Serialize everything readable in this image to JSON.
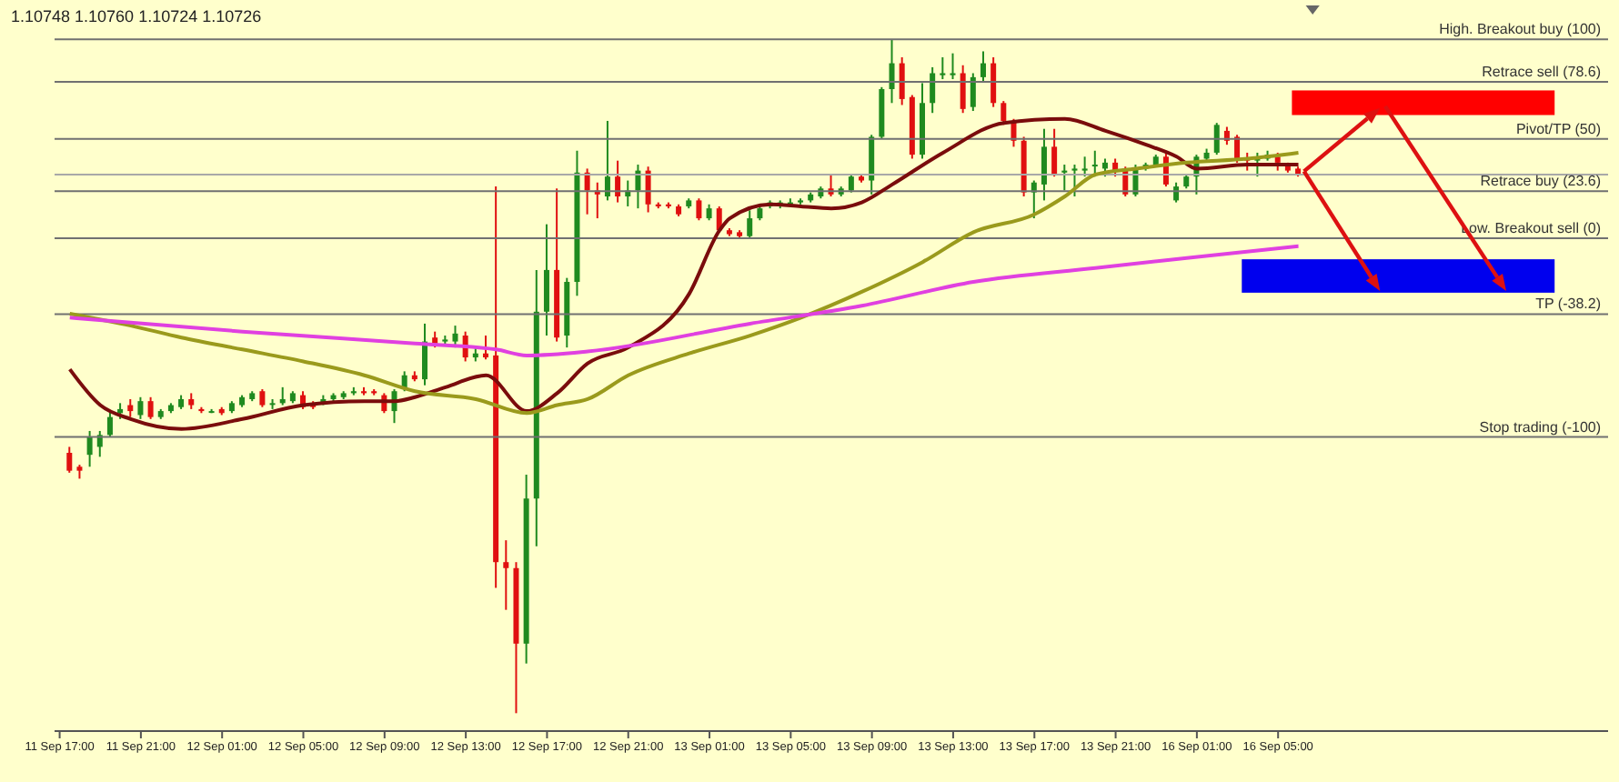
{
  "chart_data": {
    "type": "candlestick",
    "tick_labels": "x",
    "ylim": [
      -248,
      118
    ],
    "colors": [
      null,
      "#e01010",
      "#e01010",
      "#1f8a1f",
      "#1f8a1f",
      "#1f8a1f",
      "#1f8a1f",
      "#e01010",
      "#1f8a1f",
      "#e01010",
      "#1f8a1f",
      "#1f8a1f",
      "#1f8a1f",
      "#e01010",
      "#e01010",
      "#1f8a1f",
      "#e01010",
      "#1f8a1f",
      "#1f8a1f",
      "#1f8a1f",
      "#e01010",
      "#1f8a1f",
      "#1f8a1f",
      "#1f8a1f",
      "#e01010",
      "#e01010",
      "#1f8a1f",
      "#1f8a1f",
      "#1f8a1f",
      "#1f8a1f",
      "#e01010",
      "#e01010",
      "#e01010",
      "#1f8a1f",
      "#1f8a1f",
      "#e01010",
      "#1f8a1f",
      "#e01010",
      "#1f8a1f",
      "#1f8a1f",
      "#e01010",
      "#1f8a1f",
      "#e01010",
      "#e01010",
      "#e01010",
      "#e01010",
      "#1f8a1f",
      "#1f8a1f",
      "#1f8a1f",
      "#e01010",
      "#1f8a1f",
      "#1f8a1f",
      "#e01010",
      "#e01010",
      "#1f8a1f",
      "#e01010",
      "#1f8a1f",
      "#1f8a1f",
      "#e01010",
      "#e01010",
      "#e01010",
      "#e01010",
      "#1f8a1f",
      "#e01010",
      "#1f8a1f",
      "#e01010",
      "#e01010",
      "#e01010",
      "#1f8a1f",
      "#1f8a1f",
      "#1f8a1f",
      "#1f8a1f",
      "#1f8a1f",
      "#1f8a1f",
      "#1f8a1f",
      "#1f8a1f",
      "#e01010",
      "#1f8a1f",
      "#1f8a1f",
      "#e01010",
      "#1f8a1f",
      "#1f8a1f",
      "#1f8a1f",
      "#e01010",
      "#e01010",
      "#1f8a1f",
      "#1f8a1f",
      "#1f8a1f",
      "#1f8a1f",
      "#e01010",
      "#1f8a1f",
      "#1f8a1f",
      "#e01010",
      "#e01010",
      "#e01010",
      "#e01010",
      "#1f8a1f",
      "#1f8a1f",
      "#e01010",
      "#1f8a1f",
      "#1f8a1f",
      "#1f8a1f",
      "#1f8a1f",
      "#1f8a1f",
      "#e01010",
      "#e01010",
      "#1f8a1f",
      "#1f8a1f",
      "#1f8a1f",
      "#e01010",
      "#1f8a1f",
      "#1f8a1f",
      "#1f8a1f",
      "#1f8a1f",
      "#1f8a1f",
      "#e01010",
      "#e01010",
      "#e01010",
      "#1f8a1f",
      "#1f8a1f",
      "#e01010",
      "#e01010",
      "#e01010",
      null,
      null,
      null,
      null,
      null,
      null,
      null,
      null,
      null,
      null,
      null,
      null,
      null,
      null,
      null,
      null,
      null,
      null,
      null,
      null,
      null,
      null,
      null,
      null,
      null,
      null,
      null,
      null,
      null,
      null
    ],
    "annotations": [
      "1.10748 1.10760 1.10724 1.10726"
    ],
    "categories": [
      "11 Sep 17:00",
      null,
      null,
      null,
      null,
      null,
      null,
      null,
      "11 Sep 21:00",
      null,
      null,
      null,
      null,
      null,
      null,
      null,
      "12 Sep 01:00",
      null,
      null,
      null,
      null,
      null,
      null,
      null,
      "12 Sep 05:00",
      null,
      null,
      null,
      null,
      null,
      null,
      null,
      "12 Sep 09:00",
      null,
      null,
      null,
      null,
      null,
      null,
      null,
      "12 Sep 13:00",
      null,
      null,
      null,
      null,
      null,
      null,
      null,
      "12 Sep 17:00",
      null,
      null,
      null,
      null,
      null,
      null,
      null,
      "12 Sep 21:00",
      null,
      null,
      null,
      null,
      null,
      null,
      null,
      "13 Sep 01:00",
      null,
      null,
      null,
      null,
      null,
      null,
      null,
      "13 Sep 05:00",
      null,
      null,
      null,
      null,
      null,
      null,
      null,
      "13 Sep 09:00",
      null,
      null,
      null,
      null,
      null,
      null,
      null,
      "13 Sep 13:00",
      null,
      null,
      null,
      null,
      null,
      null,
      null,
      "13 Sep 17:00",
      null,
      null,
      null,
      null,
      null,
      null,
      null,
      "13 Sep 21:00",
      null,
      null,
      null,
      null,
      null,
      null,
      null,
      "16 Sep 01:00",
      null,
      null,
      null,
      null,
      null,
      null,
      null,
      "16 Sep 05:00",
      null,
      null,
      null,
      null,
      null,
      null,
      null,
      null,
      null,
      null,
      null,
      null,
      null,
      null,
      null,
      null,
      null,
      null,
      null,
      null,
      null,
      null,
      null,
      null,
      null,
      null,
      null,
      null,
      null,
      null,
      null,
      null
    ],
    "ohlc": [
      null,
      [
        -108,
        -105,
        -118,
        -117
      ],
      [
        -115,
        -114,
        -121,
        -117
      ],
      [
        -109,
        -97,
        -115,
        -100
      ],
      [
        -105,
        -97,
        -110,
        -99
      ],
      [
        -99,
        -87,
        -100,
        -90
      ],
      [
        -88,
        -83,
        -91,
        -86
      ],
      [
        -84,
        -81,
        -90,
        -87
      ],
      [
        -89,
        -80,
        -91,
        -82
      ],
      [
        -82,
        -80,
        -91,
        -90
      ],
      [
        -90,
        -86,
        -91,
        -87
      ],
      [
        -87,
        -83,
        -88,
        -84
      ],
      [
        -85,
        -79,
        -86,
        -81
      ],
      [
        -81,
        -78,
        -86,
        -84
      ],
      [
        -86,
        -85,
        -88,
        -87
      ],
      [
        -87,
        -86,
        -88,
        -87
      ],
      [
        -86,
        -85,
        -89,
        -88
      ],
      [
        -87,
        -82,
        -88,
        -83
      ],
      [
        -84,
        -79,
        -85,
        -80
      ],
      [
        -81,
        -77,
        -82,
        -78
      ],
      [
        -77,
        -76,
        -85,
        -84
      ],
      [
        -83,
        -81,
        -86,
        -83
      ],
      [
        -83,
        -75,
        -84,
        -81
      ],
      [
        -82,
        -77,
        -83,
        -78
      ],
      [
        -79,
        -77,
        -86,
        -85
      ],
      [
        -83,
        -82,
        -86,
        -85
      ],
      [
        -83,
        -79,
        -84,
        -81
      ],
      [
        -81,
        -78,
        -82,
        -79
      ],
      [
        -80,
        -77,
        -81,
        -78
      ],
      [
        -78,
        -75,
        -79,
        -77
      ],
      [
        -77,
        -75,
        -79,
        -78
      ],
      [
        -77,
        -76,
        -79,
        -78
      ],
      [
        -79,
        -78,
        -88,
        -87
      ],
      [
        -87,
        -76,
        -93,
        -77
      ],
      [
        -76,
        -67,
        -77,
        -69
      ],
      [
        -69,
        -67,
        -72,
        -71
      ],
      [
        -71,
        -43,
        -74,
        -52
      ],
      [
        -50,
        -47,
        -55,
        -53
      ],
      [
        -52,
        -49,
        -54,
        -51
      ],
      [
        -52,
        -44,
        -55,
        -48
      ],
      [
        -49,
        -47,
        -62,
        -60
      ],
      [
        -60,
        -55,
        -62,
        -58
      ],
      [
        -58,
        -49,
        -61,
        -60
      ],
      [
        -59,
        26,
        -176,
        -163
      ],
      [
        -163,
        -152,
        -187,
        -166
      ],
      [
        -166,
        -163,
        -239,
        -204
      ],
      [
        -204,
        -119,
        -214,
        -131
      ],
      [
        -131,
        -16,
        -155,
        -37
      ],
      [
        -37,
        7,
        -49,
        -16
      ],
      [
        -16,
        25,
        -52,
        -50
      ],
      [
        -49,
        -20,
        -55,
        -22
      ],
      [
        -22,
        44,
        -29,
        33
      ],
      [
        33,
        35,
        12,
        24
      ],
      [
        24,
        28,
        10,
        22
      ],
      [
        21,
        59,
        19,
        31
      ],
      [
        31,
        39,
        18,
        21
      ],
      [
        21,
        29,
        16,
        24
      ],
      [
        24,
        37,
        15,
        34
      ],
      [
        34,
        36,
        13,
        17
      ],
      [
        17,
        18,
        15,
        16
      ],
      [
        17,
        18,
        15,
        16
      ],
      [
        16,
        17,
        11,
        12
      ],
      [
        16,
        20,
        15,
        19
      ],
      [
        19,
        20,
        9,
        10
      ],
      [
        10,
        17,
        9,
        15
      ],
      [
        15,
        16,
        3,
        4
      ],
      [
        4,
        5,
        1,
        2
      ],
      [
        3,
        4,
        0,
        1
      ],
      [
        1,
        14,
        0,
        10
      ],
      [
        10,
        17,
        9,
        15
      ],
      [
        16,
        19,
        15,
        18
      ],
      [
        16,
        19,
        15,
        18
      ],
      [
        17,
        20,
        16,
        18
      ],
      [
        18,
        20,
        17,
        19
      ],
      [
        19,
        23,
        18,
        22
      ],
      [
        21,
        26,
        20,
        25
      ],
      [
        25,
        32,
        21,
        22
      ],
      [
        22,
        26,
        21,
        25
      ],
      [
        24,
        32,
        23,
        31
      ],
      [
        31,
        32,
        28,
        29
      ],
      [
        29,
        52,
        22,
        51
      ],
      [
        51,
        76,
        50,
        75
      ],
      [
        75,
        100,
        68,
        88
      ],
      [
        88,
        91,
        67,
        70
      ],
      [
        71,
        72,
        40,
        42
      ],
      [
        42,
        78,
        40,
        68
      ],
      [
        68,
        86,
        63,
        83
      ],
      [
        82,
        91,
        80,
        83
      ],
      [
        82,
        93,
        80,
        83
      ],
      [
        83,
        87,
        63,
        65
      ],
      [
        66,
        83,
        64,
        81
      ],
      [
        81,
        94,
        79,
        88
      ],
      [
        88,
        91,
        66,
        68
      ],
      [
        68,
        69,
        57,
        59
      ],
      [
        59,
        60,
        46,
        49
      ],
      [
        49,
        51,
        21,
        23
      ],
      [
        23,
        29,
        10,
        28
      ],
      [
        27,
        55,
        19,
        46
      ],
      [
        46,
        55,
        31,
        32
      ],
      [
        33,
        37,
        24,
        34
      ],
      [
        34,
        37,
        21,
        35
      ],
      [
        34,
        41,
        31,
        35
      ],
      [
        37,
        44,
        31,
        37
      ],
      [
        35,
        40,
        31,
        38
      ],
      [
        38,
        40,
        31,
        34
      ],
      [
        35,
        36,
        21,
        22
      ],
      [
        22,
        37,
        21,
        35
      ],
      [
        35,
        38,
        34,
        37
      ],
      [
        37,
        42,
        36,
        41
      ],
      [
        41,
        44,
        26,
        27
      ],
      [
        19,
        28,
        18,
        26
      ],
      [
        26,
        32,
        25,
        31
      ],
      [
        31,
        42,
        22,
        41
      ],
      [
        40,
        45,
        39,
        43
      ],
      [
        43,
        58,
        42,
        57
      ],
      [
        54,
        56,
        47,
        49
      ],
      [
        51,
        52,
        38,
        40
      ],
      [
        40,
        43,
        34,
        39
      ],
      [
        39,
        43,
        31,
        41
      ],
      [
        40,
        44,
        39,
        42
      ],
      [
        41,
        43,
        34,
        38
      ],
      [
        37,
        38,
        33,
        34
      ],
      [
        35,
        36,
        31,
        32
      ],
      null,
      null,
      null,
      null,
      null,
      null,
      null,
      null,
      null,
      null,
      null,
      null,
      null,
      null,
      null,
      null,
      null,
      null,
      null,
      null,
      null,
      null,
      null,
      null,
      null,
      null,
      null,
      null,
      null,
      null
    ],
    "series": [
      {
        "type": "line",
        "color": "#7a0c0c",
        "values": [
          null,
          -66,
          null,
          null,
          -84,
          null,
          null,
          -91,
          null,
          null,
          null,
          null,
          -96,
          null,
          null,
          null,
          null,
          null,
          -91,
          null,
          null,
          null,
          null,
          null,
          -84,
          null,
          null,
          null,
          null,
          null,
          -82,
          null,
          null,
          -82,
          null,
          -80,
          null,
          null,
          -75,
          null,
          null,
          null,
          -69,
          null,
          null,
          null,
          -87,
          null,
          null,
          -78,
          null,
          null,
          -63,
          null,
          null,
          null,
          -55,
          null,
          null,
          null,
          null,
          null,
          -28,
          null,
          null,
          4,
          10,
          null,
          null,
          null,
          17,
          null,
          null,
          16,
          null,
          null,
          15,
          null,
          null,
          18,
          null,
          null,
          27,
          null,
          null,
          null,
          null,
          43,
          null,
          null,
          null,
          null,
          null,
          58,
          null,
          null,
          null,
          null,
          null,
          60,
          null,
          null,
          null,
          54,
          null,
          null,
          null,
          47,
          null,
          null,
          41,
          null,
          35,
          null,
          null,
          null,
          null,
          37,
          null,
          null,
          null,
          null,
          37,
          null,
          null,
          null,
          null,
          null,
          null,
          null,
          null,
          null,
          null,
          null,
          null,
          null,
          null,
          null,
          null,
          null,
          null,
          null,
          null,
          null,
          null,
          null,
          null,
          null,
          null,
          null,
          null,
          null,
          null
        ]
      },
      {
        "type": "line",
        "color": "#9a9a1c",
        "values": [
          null,
          -38,
          null,
          null,
          null,
          null,
          null,
          -44,
          null,
          null,
          null,
          null,
          -50,
          null,
          null,
          null,
          null,
          null,
          -56,
          null,
          null,
          null,
          null,
          null,
          -62,
          null,
          null,
          null,
          null,
          null,
          -69,
          null,
          null,
          null,
          null,
          -77,
          null,
          null,
          null,
          null,
          null,
          -81,
          null,
          null,
          null,
          null,
          -88,
          null,
          null,
          -84,
          null,
          null,
          -81,
          null,
          null,
          null,
          -69,
          null,
          null,
          null,
          null,
          null,
          -58,
          null,
          null,
          null,
          null,
          null,
          -49,
          null,
          null,
          null,
          null,
          -40,
          null,
          null,
          null,
          null,
          null,
          -27,
          null,
          null,
          null,
          null,
          null,
          -12,
          null,
          null,
          null,
          null,
          3,
          null,
          null,
          null,
          null,
          null,
          12,
          null,
          null,
          21,
          null,
          null,
          32,
          null,
          null,
          null,
          35,
          null,
          null,
          null,
          null,
          38,
          null,
          null,
          null,
          null,
          null,
          40,
          null,
          null,
          null,
          null,
          43,
          null,
          null,
          null,
          null,
          null,
          null,
          null,
          null,
          null,
          null,
          null,
          null,
          null,
          null,
          null,
          null,
          null,
          null,
          null,
          null,
          null,
          null,
          null,
          null,
          null,
          null,
          null,
          null,
          null,
          null
        ]
      },
      {
        "type": "line",
        "color": "#e040e0",
        "values": [
          null,
          -40,
          null,
          null,
          null,
          null,
          null,
          null,
          null,
          null,
          null,
          null,
          null,
          null,
          null,
          null,
          null,
          null,
          -47,
          null,
          null,
          null,
          null,
          null,
          null,
          null,
          null,
          null,
          null,
          null,
          null,
          null,
          null,
          null,
          null,
          -53,
          null,
          null,
          null,
          null,
          null,
          null,
          null,
          -56,
          null,
          null,
          -59,
          null,
          null,
          null,
          null,
          null,
          -57,
          null,
          null,
          null,
          null,
          null,
          null,
          null,
          null,
          null,
          null,
          null,
          null,
          null,
          null,
          null,
          -43,
          null,
          null,
          null,
          null,
          null,
          null,
          null,
          null,
          null,
          null,
          -34,
          null,
          null,
          null,
          null,
          null,
          null,
          null,
          null,
          null,
          null,
          -22,
          null,
          null,
          null,
          null,
          null,
          null,
          null,
          null,
          null,
          null,
          null,
          -15,
          null,
          null,
          null,
          null,
          null,
          null,
          null,
          null,
          -10,
          null,
          null,
          null,
          null,
          null,
          null,
          null,
          null,
          null,
          null,
          -4,
          null,
          null,
          null,
          null,
          null,
          null,
          null,
          null,
          null,
          null,
          null,
          null,
          null,
          null,
          null,
          null,
          null,
          null,
          null,
          null,
          null,
          null,
          null,
          null,
          null,
          null,
          null,
          null,
          null,
          null
        ]
      }
    ],
    "ref_lines": [
      {
        "axis": "y",
        "value": 32,
        "color": "#a8a8a8"
      },
      {
        "axis": "y",
        "value": 100,
        "label": "High. Breakout buy (100)",
        "color": "#707070"
      },
      {
        "axis": "y",
        "value": 78.6,
        "label": "Retrace sell (78.6)",
        "color": "#707070"
      },
      {
        "axis": "y",
        "value": 50,
        "label": "Pivot/TP (50)",
        "color": "#707070"
      },
      {
        "axis": "y",
        "value": 23.6,
        "label": "Retrace buy (23.6)",
        "color": "#707070"
      },
      {
        "axis": "y",
        "value": 0,
        "label": "Low. Breakout sell (0)",
        "color": "#707070"
      },
      {
        "axis": "y",
        "value": -38.2,
        "label": "TP (-38.2)",
        "color": "#707070"
      },
      {
        "axis": "y",
        "value": -100,
        "label": "Stop trading (-100)",
        "color": "#707070"
      }
    ]
  }
}
